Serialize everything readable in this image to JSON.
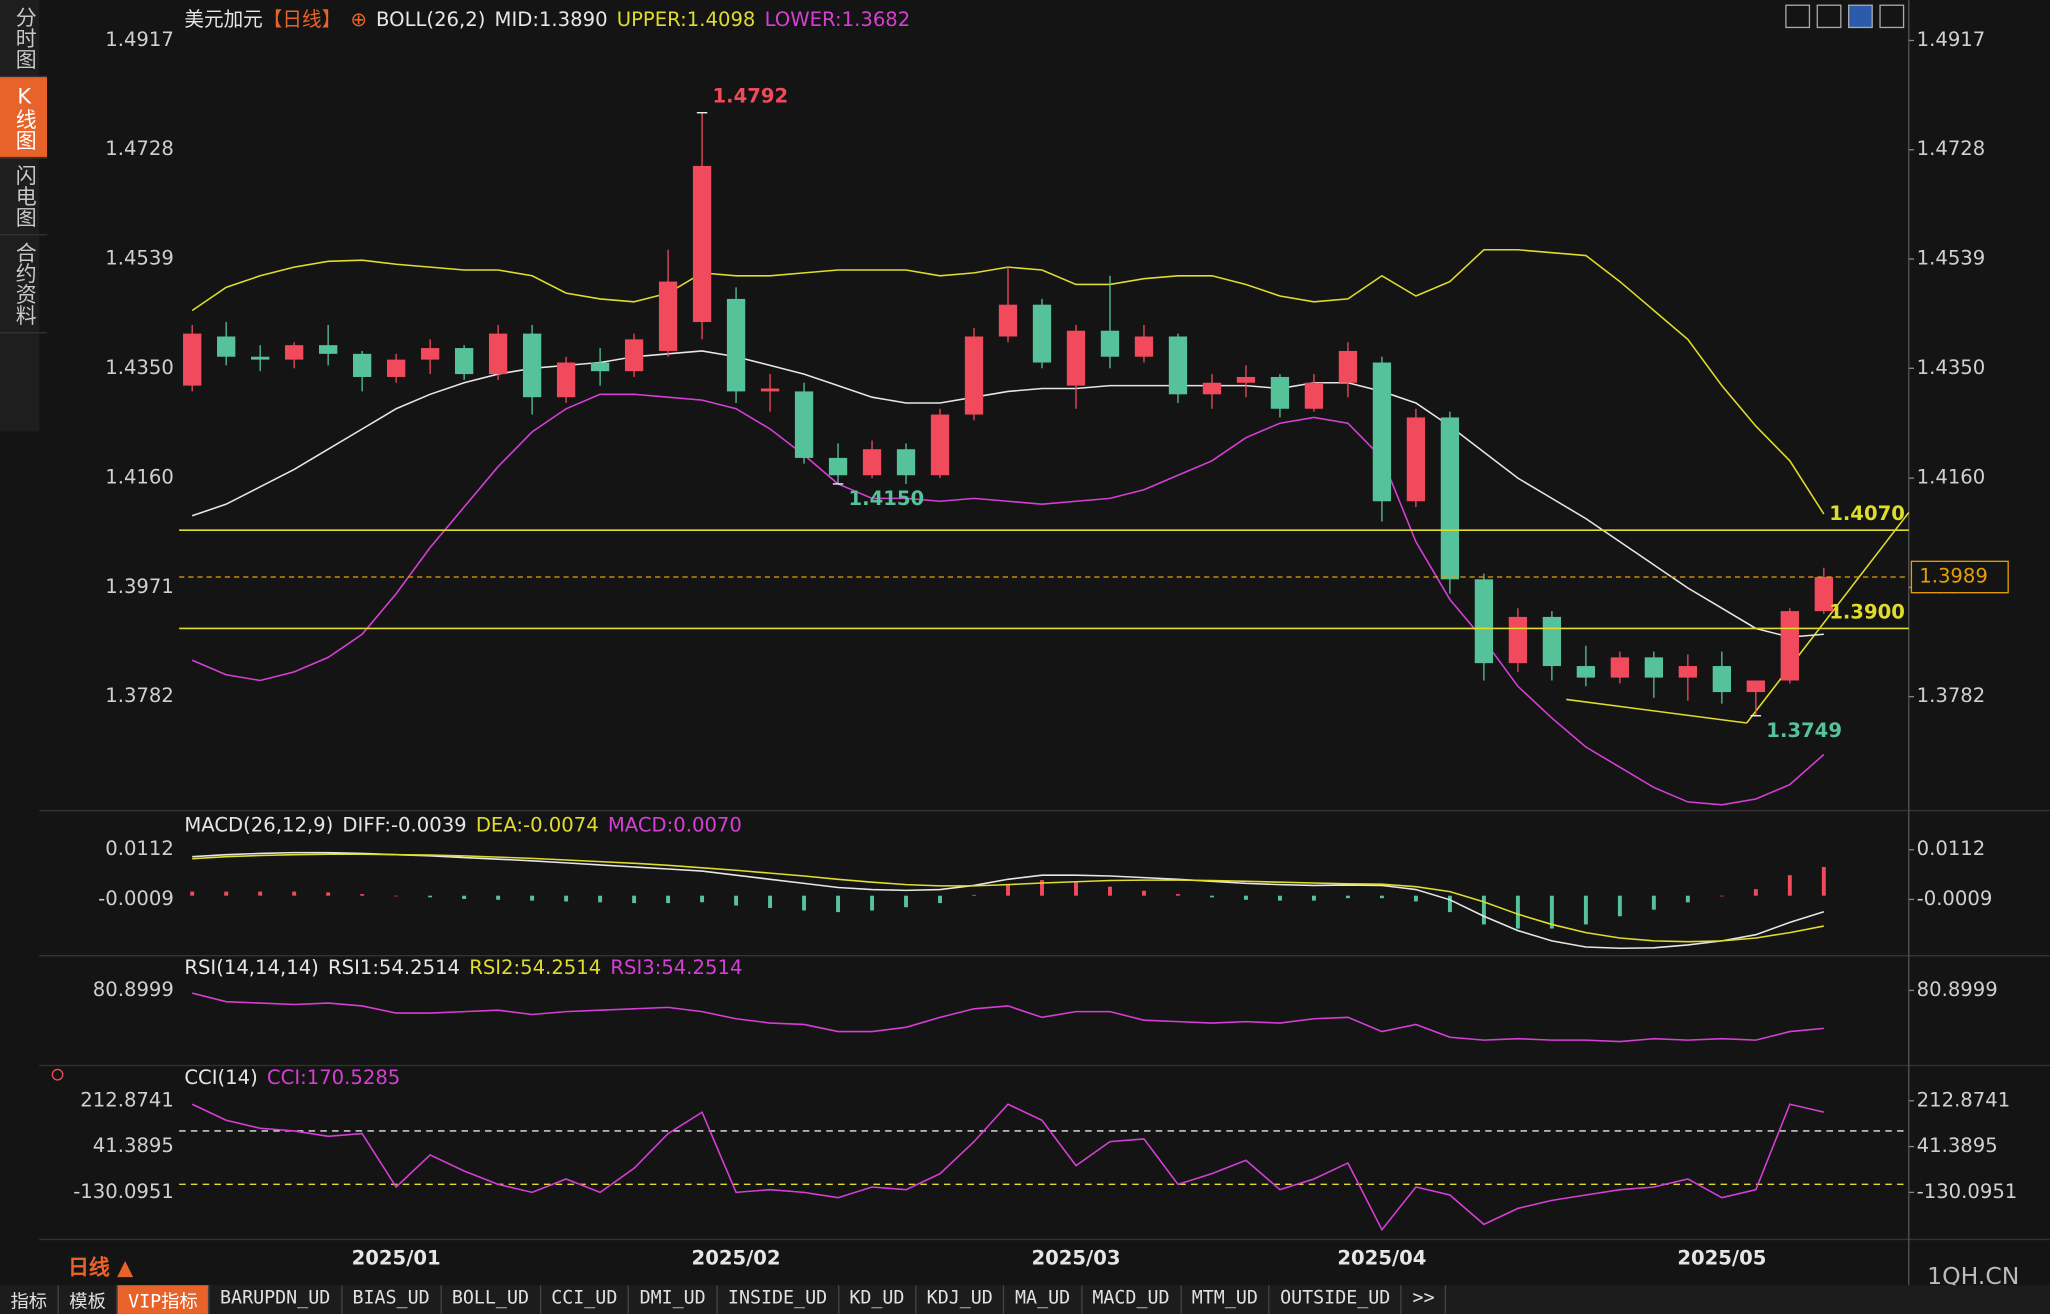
{
  "sidebar": [
    "分时图",
    "K线图",
    "闪电图",
    "合约资料"
  ],
  "chart_data": [
    {
      "type": "candlestick",
      "title": "美元加元",
      "period": "【日线】",
      "indicator": "BOLL(26,2)",
      "legend": [
        {
          "text": "MID:1.3890",
          "color": "#e6e6e6"
        },
        {
          "text": "UPPER:1.4098",
          "color": "#e0dc2c"
        },
        {
          "text": "LOWER:1.3682",
          "color": "#d63fd6"
        }
      ],
      "categories": [
        null,
        null,
        null,
        null,
        null,
        null,
        "2025/01",
        null,
        null,
        null,
        null,
        null,
        null,
        null,
        null,
        null,
        "2025/02",
        null,
        null,
        null,
        null,
        null,
        null,
        null,
        null,
        null,
        "2025/03",
        null,
        null,
        null,
        null,
        null,
        null,
        null,
        null,
        "2025/04",
        null,
        null,
        null,
        null,
        null,
        null,
        null,
        null,
        null,
        "2025/05",
        null,
        null,
        null
      ],
      "candles": [
        [
          1.432,
          1.4425,
          1.431,
          1.441
        ],
        [
          1.4405,
          1.443,
          1.4355,
          1.437
        ],
        [
          1.437,
          1.439,
          1.4345,
          1.4365
        ],
        [
          1.4365,
          1.4395,
          1.435,
          1.439
        ],
        [
          1.439,
          1.4425,
          1.4355,
          1.4375
        ],
        [
          1.4375,
          1.438,
          1.431,
          1.4335
        ],
        [
          1.4335,
          1.4375,
          1.4325,
          1.4365
        ],
        [
          1.4365,
          1.44,
          1.434,
          1.4385
        ],
        [
          1.4385,
          1.439,
          1.433,
          1.434
        ],
        [
          1.434,
          1.4425,
          1.433,
          1.441
        ],
        [
          1.441,
          1.4425,
          1.427,
          1.43
        ],
        [
          1.43,
          1.437,
          1.429,
          1.436
        ],
        [
          1.436,
          1.4385,
          1.432,
          1.4345
        ],
        [
          1.4345,
          1.441,
          1.4335,
          1.44
        ],
        [
          1.438,
          1.4555,
          1.437,
          1.45
        ],
        [
          1.443,
          1.4792,
          1.44,
          1.47
        ],
        [
          1.447,
          1.449,
          1.429,
          1.431
        ],
        [
          1.431,
          1.434,
          1.4275,
          1.4315
        ],
        [
          1.431,
          1.4325,
          1.4185,
          1.4195
        ],
        [
          1.4195,
          1.422,
          1.415,
          1.4165
        ],
        [
          1.4165,
          1.4225,
          1.416,
          1.421
        ],
        [
          1.421,
          1.422,
          1.415,
          1.4165
        ],
        [
          1.4165,
          1.428,
          1.416,
          1.427
        ],
        [
          1.427,
          1.442,
          1.426,
          1.4405
        ],
        [
          1.4405,
          1.4525,
          1.4395,
          1.446
        ],
        [
          1.446,
          1.447,
          1.435,
          1.436
        ],
        [
          1.432,
          1.4425,
          1.428,
          1.4415
        ],
        [
          1.4415,
          1.451,
          1.435,
          1.437
        ],
        [
          1.437,
          1.4425,
          1.436,
          1.4405
        ],
        [
          1.4405,
          1.441,
          1.429,
          1.4305
        ],
        [
          1.4305,
          1.434,
          1.428,
          1.4325
        ],
        [
          1.4325,
          1.4355,
          1.43,
          1.4335
        ],
        [
          1.4335,
          1.434,
          1.4265,
          1.428
        ],
        [
          1.428,
          1.434,
          1.4275,
          1.4325
        ],
        [
          1.4325,
          1.4395,
          1.43,
          1.438
        ],
        [
          1.436,
          1.437,
          1.4085,
          1.412
        ],
        [
          1.412,
          1.428,
          1.411,
          1.4265
        ],
        [
          1.4265,
          1.4275,
          1.396,
          1.3985
        ],
        [
          1.3985,
          1.3995,
          1.381,
          1.384
        ],
        [
          1.384,
          1.3935,
          1.3825,
          1.392
        ],
        [
          1.392,
          1.393,
          1.381,
          1.3835
        ],
        [
          1.3835,
          1.387,
          1.38,
          1.3815
        ],
        [
          1.3815,
          1.386,
          1.3805,
          1.385
        ],
        [
          1.385,
          1.386,
          1.378,
          1.3815
        ],
        [
          1.3815,
          1.3855,
          1.3775,
          1.3835
        ],
        [
          1.3835,
          1.386,
          1.377,
          1.379
        ],
        [
          1.379,
          1.381,
          1.3749,
          1.381
        ],
        [
          1.381,
          1.3935,
          1.3805,
          1.393
        ],
        [
          1.393,
          1.4005,
          1.3925,
          1.3989
        ]
      ],
      "up_color": "#f04a5c",
      "down_color": "#56c29a",
      "series": [
        {
          "color": "#e6e6e6",
          "values": [
            1.4095,
            1.4115,
            1.4145,
            1.4175,
            1.421,
            1.4245,
            1.428,
            1.4305,
            1.4325,
            1.434,
            1.435,
            1.4355,
            1.436,
            1.437,
            1.4375,
            1.438,
            1.437,
            1.4355,
            1.434,
            1.432,
            1.43,
            1.429,
            1.429,
            1.43,
            1.431,
            1.4315,
            1.4315,
            1.432,
            1.432,
            1.432,
            1.432,
            1.432,
            1.4315,
            1.4325,
            1.4325,
            1.431,
            1.429,
            1.425,
            1.4205,
            1.416,
            1.4125,
            1.409,
            1.405,
            1.401,
            1.397,
            1.3935,
            1.39,
            1.3885,
            1.389
          ]
        },
        {
          "color": "#e0dc2c",
          "values": [
            1.445,
            1.449,
            1.451,
            1.4525,
            1.4535,
            1.4537,
            1.453,
            1.4525,
            1.452,
            1.452,
            1.451,
            1.448,
            1.447,
            1.4465,
            1.448,
            1.4515,
            1.451,
            1.451,
            1.4515,
            1.452,
            1.452,
            1.452,
            1.451,
            1.4515,
            1.4525,
            1.452,
            1.4495,
            1.4495,
            1.4505,
            1.451,
            1.451,
            1.4495,
            1.4475,
            1.4465,
            1.447,
            1.451,
            1.4475,
            1.45,
            1.4555,
            1.4555,
            1.455,
            1.4545,
            1.45,
            1.445,
            1.44,
            1.432,
            1.425,
            1.419,
            1.4098
          ]
        },
        {
          "color": "#d63fd6",
          "values": [
            1.3845,
            1.382,
            1.381,
            1.3825,
            1.385,
            1.389,
            1.396,
            1.404,
            1.411,
            1.418,
            1.424,
            1.428,
            1.4305,
            1.4305,
            1.43,
            1.4295,
            1.428,
            1.4245,
            1.42,
            1.415,
            1.4125,
            1.4125,
            1.412,
            1.4125,
            1.412,
            1.4115,
            1.412,
            1.4125,
            1.414,
            1.4165,
            1.419,
            1.423,
            1.4255,
            1.4265,
            1.4255,
            1.4195,
            1.405,
            1.395,
            1.388,
            1.38,
            1.3745,
            1.3695,
            1.366,
            1.3625,
            1.36,
            1.3595,
            1.3605,
            1.363,
            1.3682
          ]
        }
      ],
      "annotations": [
        {
          "value": 1.4792
        },
        {
          "value": 1.415,
          "label": "1.4150"
        },
        {
          "value": 1.3749
        }
      ],
      "hlines": [
        {
          "value": 1.407,
          "label": "1.4070",
          "color": "#e0dc2c"
        },
        {
          "value": 1.39,
          "label": "1.3900",
          "color": "#e0dc2c"
        }
      ],
      "last": 1.3989,
      "last_color": "#e8a000",
      "ylim": [
        1.3585,
        1.4987
      ],
      "yticks": [
        1.4917,
        1.4728,
        1.4539,
        {
          "value": 1.435,
          "label": "1.4350"
        },
        {
          "value": 1.416,
          "label": "1.4160"
        },
        1.3971,
        1.3782
      ]
    },
    {
      "type": "macd",
      "legend": [
        {
          "text": "MACD(26,12,9)",
          "color": "#e6e6e6"
        },
        {
          "text": "DIFF:-0.0039",
          "color": "#e6e6e6"
        },
        {
          "text": "DEA:-0.0074",
          "color": "#e0dc2c"
        },
        {
          "text": "MACD:0.0070",
          "color": "#d63fd6"
        }
      ],
      "series": [
        {
          "color": "#e6e6e6",
          "values": [
            0.0095,
            0.01,
            0.0103,
            0.0105,
            0.0105,
            0.0103,
            0.01,
            0.0097,
            0.0093,
            0.0089,
            0.0085,
            0.008,
            0.0075,
            0.007,
            0.0065,
            0.006,
            0.005,
            0.004,
            0.003,
            0.002,
            0.0015,
            0.0013,
            0.0015,
            0.0025,
            0.004,
            0.005,
            0.005,
            0.0048,
            0.0044,
            0.004,
            0.0035,
            0.003,
            0.0027,
            0.0025,
            0.0026,
            0.0025,
            0.0015,
            -0.001,
            -0.005,
            -0.0085,
            -0.011,
            -0.0125,
            -0.0128,
            -0.0127,
            -0.012,
            -0.011,
            -0.0095,
            -0.0065,
            -0.0039
          ]
        },
        {
          "color": "#e0dc2c",
          "values": [
            0.009,
            0.0095,
            0.0098,
            0.01,
            0.0101,
            0.0101,
            0.01,
            0.0099,
            0.0097,
            0.0094,
            0.0091,
            0.0087,
            0.0083,
            0.0079,
            0.0074,
            0.0068,
            0.0062,
            0.0055,
            0.0048,
            0.004,
            0.0033,
            0.0027,
            0.0024,
            0.0024,
            0.0027,
            0.0031,
            0.0034,
            0.0037,
            0.0038,
            0.0038,
            0.0037,
            0.0035,
            0.0033,
            0.0031,
            0.0029,
            0.0028,
            0.0022,
            0.001,
            -0.0015,
            -0.0045,
            -0.007,
            -0.009,
            -0.0103,
            -0.011,
            -0.0112,
            -0.011,
            -0.0103,
            -0.009,
            -0.0074
          ]
        }
      ],
      "histogram": [
        0.001,
        0.001,
        0.001,
        0.001,
        0.0008,
        0.0004,
        0,
        -0.0004,
        -0.0008,
        -0.001,
        -0.0012,
        -0.0014,
        -0.0016,
        -0.0018,
        -0.0018,
        -0.0016,
        -0.0024,
        -0.003,
        -0.0036,
        -0.004,
        -0.0036,
        -0.0028,
        -0.0018,
        0.0002,
        0.0026,
        0.0038,
        0.0032,
        0.0022,
        0.0012,
        0.0004,
        -0.0004,
        -0.001,
        -0.0012,
        -0.0012,
        -0.0006,
        -0.0006,
        -0.0014,
        -0.004,
        -0.007,
        -0.008,
        -0.008,
        -0.007,
        -0.005,
        -0.0034,
        -0.0016,
        0,
        0.0016,
        0.005,
        0.007
      ],
      "up_color": "#f04a5c",
      "down_color": "#56c29a",
      "ylim": [
        -0.0143,
        0.0201
      ],
      "yticks": [
        0.0112,
        -0.0009
      ]
    },
    {
      "type": "line",
      "legend": [
        {
          "text": "RSI(14,14,14)",
          "color": "#e6e6e6"
        },
        {
          "text": "RSI1:54.2514",
          "color": "#e6e6e6"
        },
        {
          "text": "RSI2:54.2514",
          "color": "#e0dc2c"
        },
        {
          "text": "RSI3:54.2514",
          "color": "#d63fd6"
        }
      ],
      "series": [
        {
          "color": "#d63fd6",
          "values": [
            79,
            73,
            72,
            71,
            72,
            70,
            65,
            65,
            66,
            67,
            64,
            66,
            67,
            68,
            69,
            66,
            61,
            58,
            57,
            52,
            52,
            55,
            62,
            68,
            70,
            62,
            66,
            66,
            60,
            59,
            58,
            59,
            58,
            61,
            62,
            52,
            57,
            48,
            46,
            47,
            46,
            46,
            45,
            47,
            46,
            47,
            46,
            52,
            54.2514
          ]
        }
      ],
      "ylim": [
        30,
        97
      ],
      "yticks": [
        80.8999
      ]
    },
    {
      "type": "line",
      "legend": [
        {
          "text": "CCI(14)",
          "color": "#e6e6e6"
        },
        {
          "text": "CCI:170.5285",
          "color": "#d63fd6"
        }
      ],
      "series": [
        {
          "color": "#d63fd6",
          "values": [
            200,
            140,
            110,
            100,
            80,
            90,
            -110,
            10,
            -50,
            -100,
            -130,
            -80,
            -130,
            -40,
            90,
            170,
            -130,
            -120,
            -130,
            -150,
            -110,
            -120,
            -60,
            60,
            200,
            140,
            -30,
            60,
            70,
            -100,
            -60,
            -10,
            -120,
            -80,
            -20,
            -270,
            -110,
            -140,
            -250,
            -190,
            -160,
            -140,
            -120,
            -110,
            -80,
            -150,
            -120,
            200,
            170.5285
          ]
        }
      ],
      "levels": [
        {
          "value": 100,
          "color": "#e6e6e6"
        },
        {
          "value": -100,
          "color": "#e0dc2c"
        }
      ],
      "ylim": [
        -320,
        320
      ],
      "yticks": [
        212.8741,
        41.3895,
        -130.0951
      ]
    }
  ],
  "footer": {
    "period": "日线 ▲",
    "tabs": [
      "指标",
      "模板",
      "VIP指标",
      "BARUPDN_UD",
      "BIAS_UD",
      "BOLL_UD",
      "CCI_UD",
      "DMI_UD",
      "INSIDE_UD",
      "KD_UD",
      "KDJ_UD",
      "MA_UD",
      "MACD_UD",
      "MTM_UD",
      "OUTSIDE_UD",
      ">>"
    ],
    "watermark": "1QH.CN"
  }
}
